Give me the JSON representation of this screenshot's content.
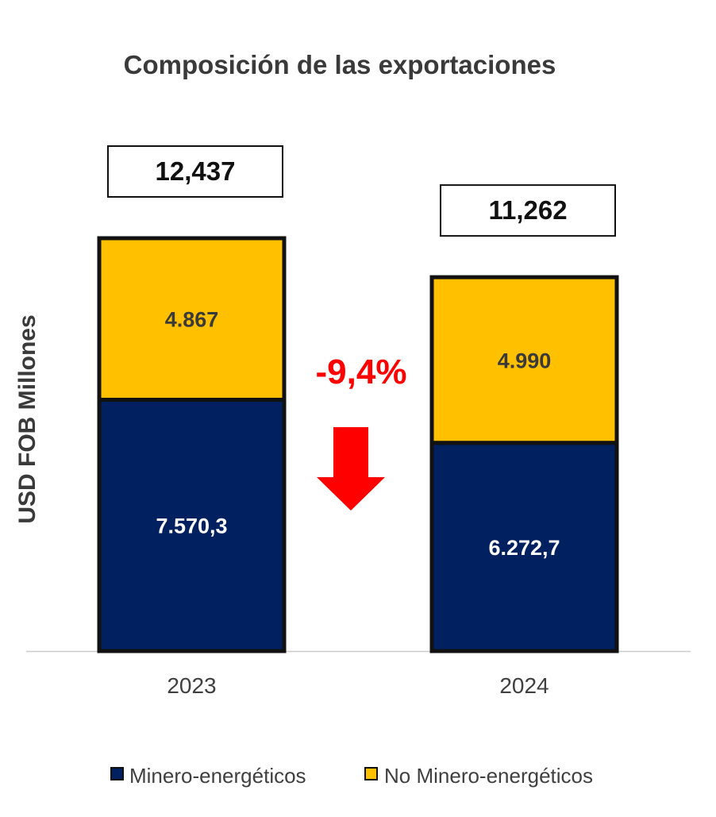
{
  "chart_data": {
    "type": "bar",
    "stacked": true,
    "title": "Composición de las exportaciones",
    "ylabel": "USD FOB Millones",
    "xlabel": "",
    "categories": [
      "2023",
      "2024"
    ],
    "series": [
      {
        "name": "Minero-energéticos",
        "values": [
          7570.3,
          6272.7
        ],
        "labels": [
          "7.570,3",
          "6.272,7"
        ],
        "color": "#002060",
        "label_color": "#ffffff"
      },
      {
        "name": "No Minero-energéticos",
        "values": [
          4867,
          4990
        ],
        "labels": [
          "4.867",
          "4.990"
        ],
        "color": "#FFC000",
        "label_color": "#3a3a3a"
      }
    ],
    "totals": [
      "12,437",
      "11,262"
    ],
    "change_annotation": "-9,4%",
    "change_color": "#FF0000",
    "arrow_icon": "down-arrow-icon",
    "legend_position": "bottom",
    "grid": false
  }
}
